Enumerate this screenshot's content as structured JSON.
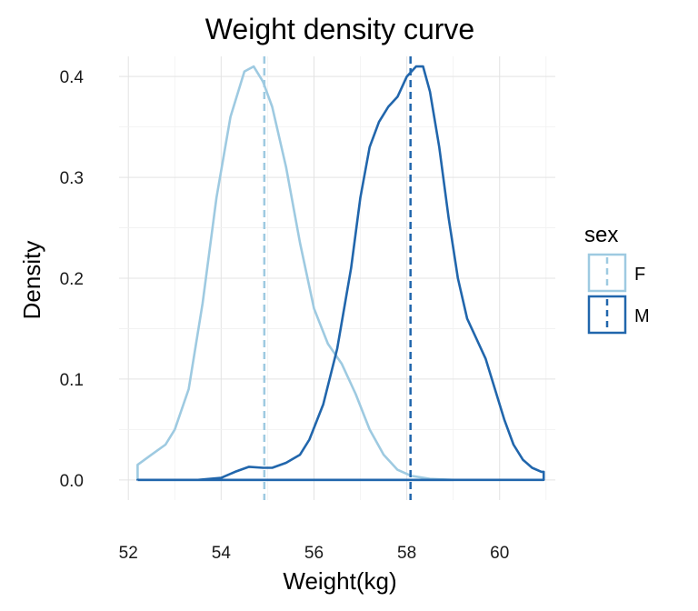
{
  "chart_data": {
    "type": "area",
    "title": "Weight density curve",
    "xlabel": "Weight(kg)",
    "ylabel": "Density",
    "xlim": [
      51.8,
      61.2
    ],
    "ylim": [
      -0.02,
      0.42
    ],
    "x_ticks": [
      "52",
      "54",
      "56",
      "58",
      "60"
    ],
    "y_ticks": [
      "0.0",
      "0.1",
      "0.2",
      "0.3",
      "0.4"
    ],
    "grid": true,
    "legend": {
      "title": "sex",
      "position": "right"
    },
    "series": [
      {
        "name": "F",
        "color": "#9ecae1",
        "mean": 54.93,
        "points": [
          [
            52.2,
            0.015
          ],
          [
            52.5,
            0.025
          ],
          [
            52.8,
            0.035
          ],
          [
            53.0,
            0.05
          ],
          [
            53.3,
            0.09
          ],
          [
            53.6,
            0.175
          ],
          [
            53.9,
            0.28
          ],
          [
            54.2,
            0.36
          ],
          [
            54.5,
            0.405
          ],
          [
            54.7,
            0.41
          ],
          [
            54.9,
            0.395
          ],
          [
            55.1,
            0.37
          ],
          [
            55.4,
            0.31
          ],
          [
            55.7,
            0.235
          ],
          [
            56.0,
            0.17
          ],
          [
            56.3,
            0.135
          ],
          [
            56.6,
            0.115
          ],
          [
            56.9,
            0.085
          ],
          [
            57.2,
            0.05
          ],
          [
            57.5,
            0.025
          ],
          [
            57.8,
            0.01
          ],
          [
            58.1,
            0.004
          ],
          [
            58.5,
            0.001
          ],
          [
            59.0,
            0.0
          ]
        ]
      },
      {
        "name": "M",
        "color": "#2166ac",
        "mean": 58.08,
        "points": [
          [
            52.2,
            0.0
          ],
          [
            53.5,
            0.0
          ],
          [
            54.0,
            0.002
          ],
          [
            54.3,
            0.008
          ],
          [
            54.6,
            0.013
          ],
          [
            54.9,
            0.012
          ],
          [
            55.1,
            0.012
          ],
          [
            55.4,
            0.017
          ],
          [
            55.7,
            0.025
          ],
          [
            55.9,
            0.04
          ],
          [
            56.2,
            0.075
          ],
          [
            56.5,
            0.13
          ],
          [
            56.8,
            0.21
          ],
          [
            57.0,
            0.28
          ],
          [
            57.2,
            0.33
          ],
          [
            57.4,
            0.355
          ],
          [
            57.6,
            0.37
          ],
          [
            57.8,
            0.38
          ],
          [
            58.0,
            0.4
          ],
          [
            58.2,
            0.41
          ],
          [
            58.35,
            0.41
          ],
          [
            58.5,
            0.385
          ],
          [
            58.7,
            0.33
          ],
          [
            58.9,
            0.26
          ],
          [
            59.1,
            0.2
          ],
          [
            59.3,
            0.16
          ],
          [
            59.5,
            0.14
          ],
          [
            59.7,
            0.12
          ],
          [
            59.9,
            0.09
          ],
          [
            60.1,
            0.06
          ],
          [
            60.3,
            0.035
          ],
          [
            60.5,
            0.02
          ],
          [
            60.7,
            0.012
          ],
          [
            60.9,
            0.008
          ],
          [
            60.95,
            0.008
          ],
          [
            60.95,
            0.0
          ]
        ]
      }
    ]
  }
}
